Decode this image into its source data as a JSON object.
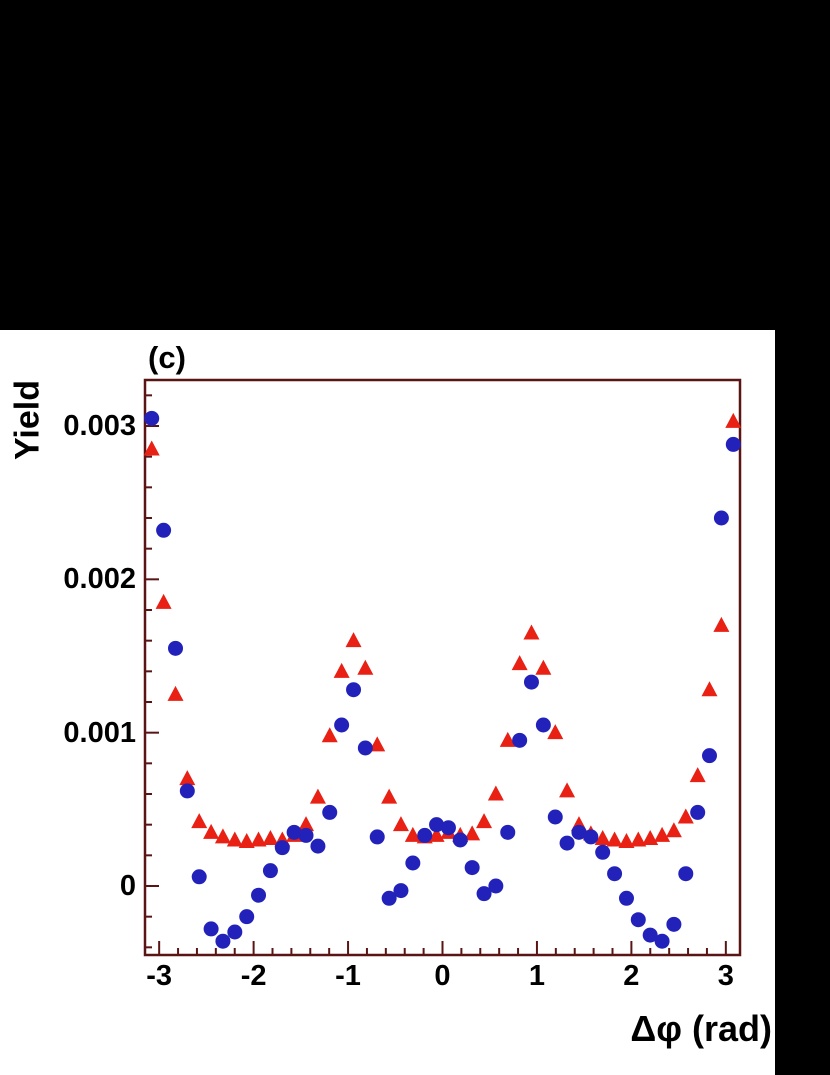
{
  "panel_label": "(c)",
  "axes": {
    "ylabel": "Yield",
    "xlabel": "Δφ (rad)",
    "x_ticks": [
      {
        "value": -3,
        "label": "-3"
      },
      {
        "value": -2,
        "label": "-2"
      },
      {
        "value": -1,
        "label": "-1"
      },
      {
        "value": 0,
        "label": "0"
      },
      {
        "value": 1,
        "label": "1"
      },
      {
        "value": 2,
        "label": "2"
      },
      {
        "value": 3,
        "label": "3"
      }
    ],
    "y_ticks": [
      {
        "value": 0,
        "label": "0"
      },
      {
        "value": 0.001,
        "label": "0.001"
      },
      {
        "value": 0.002,
        "label": "0.002"
      },
      {
        "value": 0.003,
        "label": "0.003"
      }
    ],
    "x_minor_step": 0.2,
    "y_minor_step": 0.0002
  },
  "colors": {
    "background": "#000000",
    "panel": "#ffffff",
    "frame": "#5a1414",
    "red_series": "#e82114",
    "blue_series": "#2222bb",
    "text": "#000000"
  },
  "chart_data": {
    "type": "scatter",
    "title": "(c)",
    "xlabel": "Δφ (rad)",
    "ylabel": "Yield",
    "xlim": [
      -3.15,
      3.15
    ],
    "ylim": [
      -0.00045,
      0.0033
    ],
    "grid": false,
    "legend": false,
    "x": [
      -3.079,
      -2.953,
      -2.827,
      -2.702,
      -2.576,
      -2.45,
      -2.325,
      -2.199,
      -2.073,
      -1.948,
      -1.822,
      -1.696,
      -1.571,
      -1.445,
      -1.319,
      -1.194,
      -1.068,
      -0.942,
      -0.817,
      -0.691,
      -0.565,
      -0.44,
      -0.314,
      -0.188,
      -0.063,
      0.063,
      0.188,
      0.314,
      0.44,
      0.565,
      0.691,
      0.817,
      0.942,
      1.068,
      1.194,
      1.319,
      1.445,
      1.571,
      1.696,
      1.822,
      1.948,
      2.073,
      2.199,
      2.325,
      2.45,
      2.576,
      2.702,
      2.827,
      2.953,
      3.079
    ],
    "series": [
      {
        "name": "red triangles",
        "marker": "triangle",
        "color": "#e82114",
        "values": [
          0.00285,
          0.00185,
          0.00125,
          0.0007,
          0.00042,
          0.00035,
          0.00032,
          0.0003,
          0.00029,
          0.0003,
          0.00031,
          0.0003,
          0.00033,
          0.0004,
          0.00058,
          0.00098,
          0.0014,
          0.0016,
          0.00142,
          0.00092,
          0.00058,
          0.0004,
          0.00033,
          0.00032,
          0.00033,
          0.00035,
          0.00033,
          0.00034,
          0.00042,
          0.0006,
          0.00095,
          0.00145,
          0.00165,
          0.00142,
          0.001,
          0.00062,
          0.0004,
          0.00034,
          0.00031,
          0.0003,
          0.00029,
          0.0003,
          0.00031,
          0.00033,
          0.00036,
          0.00045,
          0.00072,
          0.00128,
          0.0017,
          0.00303
        ]
      },
      {
        "name": "blue circles",
        "marker": "circle",
        "color": "#2222bb",
        "values": [
          0.00305,
          0.00232,
          0.00155,
          0.00062,
          6e-05,
          -0.00028,
          -0.00036,
          -0.0003,
          -0.0002,
          -6e-05,
          0.0001,
          0.00025,
          0.00035,
          0.00033,
          0.00026,
          0.00048,
          0.00105,
          0.00128,
          0.0009,
          0.00032,
          -8e-05,
          -3e-05,
          0.00015,
          0.00033,
          0.0004,
          0.00038,
          0.0003,
          0.00012,
          -5e-05,
          0.0,
          0.00035,
          0.00095,
          0.00133,
          0.00105,
          0.00045,
          0.00028,
          0.00035,
          0.00032,
          0.00022,
          8e-05,
          -8e-05,
          -0.00022,
          -0.00032,
          -0.00036,
          -0.00025,
          8e-05,
          0.00048,
          0.00085,
          0.0024,
          0.00288
        ]
      }
    ]
  }
}
